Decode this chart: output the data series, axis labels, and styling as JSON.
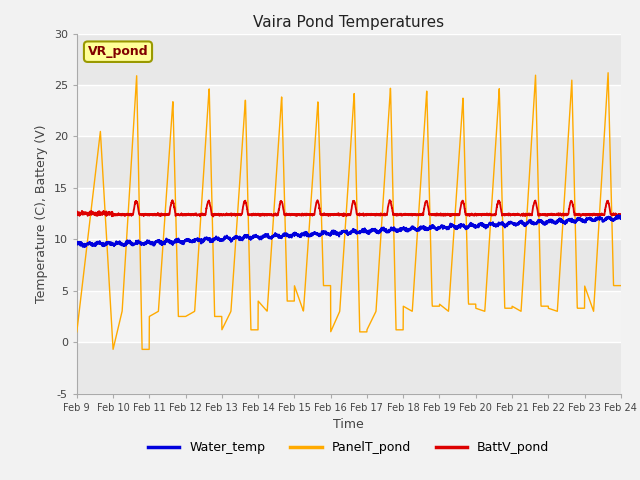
{
  "title": "Vaira Pond Temperatures",
  "xlabel": "Time",
  "ylabel": "Temperature (C), Battery (V)",
  "ylim": [
    -5,
    30
  ],
  "xlim": [
    0,
    15
  ],
  "x_tick_labels": [
    "Feb 9",
    "Feb 10",
    "Feb 11",
    "Feb 12",
    "Feb 13",
    "Feb 14",
    "Feb 15",
    "Feb 16",
    "Feb 17",
    "Feb 18",
    "Feb 19",
    "Feb 20",
    "Feb 21",
    "Feb 22",
    "Feb 23",
    "Feb 24"
  ],
  "water_color": "#0000dd",
  "panel_color": "#ffaa00",
  "batt_color": "#dd0000",
  "plot_bg": "#e8e8e8",
  "outer_bg": "#f2f2f2",
  "legend_label_water": "Water_temp",
  "legend_label_panel": "PanelT_pond",
  "legend_label_batt": "BattV_pond",
  "annotation_text": "VR_pond",
  "annotation_box_color": "#ffff99",
  "annotation_border_color": "#999900",
  "yticks": [
    -5,
    0,
    5,
    10,
    15,
    20,
    25,
    30
  ],
  "title_fontsize": 11,
  "axis_label_fontsize": 9,
  "tick_fontsize": 7,
  "legend_fontsize": 9,
  "panel_peaks": [
    20.5,
    26.0,
    23.5,
    24.8,
    23.7,
    24.0,
    23.5,
    24.3,
    24.8,
    24.5,
    23.8,
    24.7,
    26.0,
    25.5,
    26.2
  ],
  "panel_mins": [
    1.0,
    -0.7,
    2.5,
    2.5,
    1.2,
    4.0,
    5.5,
    1.0,
    1.2,
    3.5,
    3.7,
    3.3,
    3.5,
    3.3,
    5.5
  ]
}
